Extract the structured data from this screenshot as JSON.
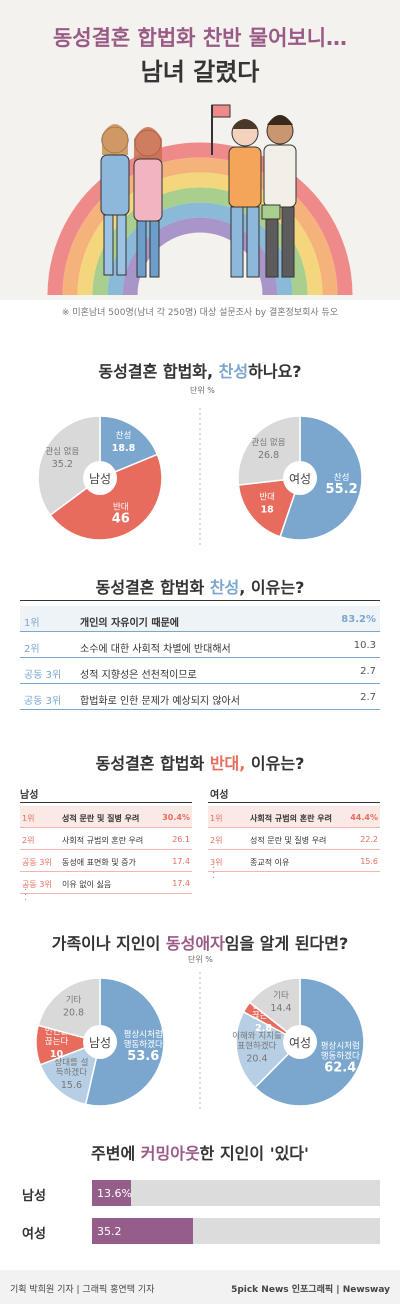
{
  "header": {
    "title_line1": "동성결혼 합법화 찬반 물어보니…",
    "title_line2": "남녀 갈렸다",
    "note": "※ 미혼남녀 500명(남녀 각 250명) 대상 설문조사 by 결혼정보회사 듀오"
  },
  "colors": {
    "blue": "#7ba7cf",
    "red": "#e86c5e",
    "gray": "#d9d9d9",
    "purple": "#955e8a",
    "light_blue": "#b7cfe5",
    "pink": "#f3b5ad"
  },
  "section1": {
    "title_pre": "동성결혼 합법화, ",
    "title_hl": "찬성",
    "title_post": "하나요?",
    "unit": "단위 %"
  },
  "section2": {
    "title_pre": "동성결혼 합법화 ",
    "title_hl": "찬성",
    "title_post": ", 이유는?"
  },
  "section3": {
    "title_pre": "동성결혼 합법화 ",
    "title_hl": "반대,",
    "title_post": " 이유는?",
    "male_head": "남성",
    "female_head": "여성"
  },
  "section4": {
    "title_pre": "가족이나 지인이 ",
    "title_hl": "동성애자",
    "title_post": "임을 알게 된다면?",
    "unit": "단위 %"
  },
  "section5": {
    "title_pre": "주변에 ",
    "title_hl": "커밍아웃",
    "title_post": "한 지인이 '있다'"
  },
  "footer": {
    "credit": "기획 박희원 기자 | 그래픽 홍연택 기자",
    "brand": "5pick News 인포그래픽 | Newsway"
  },
  "chart_data": [
    {
      "type": "pie",
      "center_label": "남성",
      "slices": [
        {
          "name": "찬성",
          "value": 18.8,
          "color": "#7ba7cf"
        },
        {
          "name": "반대",
          "value": 46.0,
          "color": "#e86c5e"
        },
        {
          "name": "관심 없음",
          "value": 35.2,
          "color": "#d9d9d9"
        }
      ]
    },
    {
      "type": "pie",
      "center_label": "여성",
      "slices": [
        {
          "name": "찬성",
          "value": 55.2,
          "color": "#7ba7cf"
        },
        {
          "name": "반대",
          "value": 18.0,
          "color": "#e86c5e"
        },
        {
          "name": "관심 없음",
          "value": 26.8,
          "color": "#d9d9d9"
        }
      ]
    },
    {
      "type": "table",
      "rows": [
        {
          "rank": "1위",
          "reason": "개인의 자유이기 때문에",
          "value": "83.2%"
        },
        {
          "rank": "2위",
          "reason": "소수에 대한 사회적 차별에 반대해서",
          "value": "10.3"
        },
        {
          "rank": "공동 3위",
          "reason": "성적 지향성은 선천적이므로",
          "value": "2.7"
        },
        {
          "rank": "공동 3위",
          "reason": "합법화로 인한 문제가 예상되지 않아서",
          "value": "2.7"
        }
      ]
    },
    {
      "type": "table",
      "rows": [
        {
          "rank": "1위",
          "reason": "성적 문란 및 질병 우려",
          "value": "30.4%"
        },
        {
          "rank": "2위",
          "reason": "사회적 규범의 혼란 우려",
          "value": "26.1"
        },
        {
          "rank": "공동 3위",
          "reason": "동성애 표면화 및 증가",
          "value": "17.4"
        },
        {
          "rank": "공동 3위",
          "reason": "이유 없이 싫음",
          "value": "17.4"
        }
      ]
    },
    {
      "type": "table",
      "rows": [
        {
          "rank": "1위",
          "reason": "사회적 규범의 혼란 우려",
          "value": "44.4%"
        },
        {
          "rank": "2위",
          "reason": "성적 문란 및 질병 우려",
          "value": "22.2"
        },
        {
          "rank": "3위",
          "reason": "종교적 이유",
          "value": "15.6"
        }
      ]
    },
    {
      "type": "pie",
      "center_label": "남성",
      "slices": [
        {
          "name": "평상시처럼 행동하겠다",
          "value": 53.6,
          "color": "#7ba7cf"
        },
        {
          "name": "상대를 설득하겠다",
          "value": 15.6,
          "color": "#b7cfe5"
        },
        {
          "name": "인연을 끊는다",
          "value": 10,
          "color": "#e86c5e"
        },
        {
          "name": "기타",
          "value": 20.8,
          "color": "#d9d9d9"
        }
      ]
    },
    {
      "type": "pie",
      "center_label": "여성",
      "slices": [
        {
          "name": "평상시처럼 행동하겠다",
          "value": 62.4,
          "color": "#7ba7cf"
        },
        {
          "name": "이해와 지지를 표현하겠다",
          "value": 20.4,
          "color": "#b7cfe5"
        },
        {
          "name": "인연을 끊는다",
          "value": 2.8,
          "color": "#e86c5e"
        },
        {
          "name": "기타",
          "value": 14.4,
          "color": "#d9d9d9"
        }
      ]
    },
    {
      "type": "bar",
      "categories": [
        "남성",
        "여성"
      ],
      "values": [
        13.6,
        35.2
      ],
      "value_labels": [
        "13.6%",
        "35.2"
      ],
      "xlim": [
        0,
        100
      ]
    }
  ]
}
